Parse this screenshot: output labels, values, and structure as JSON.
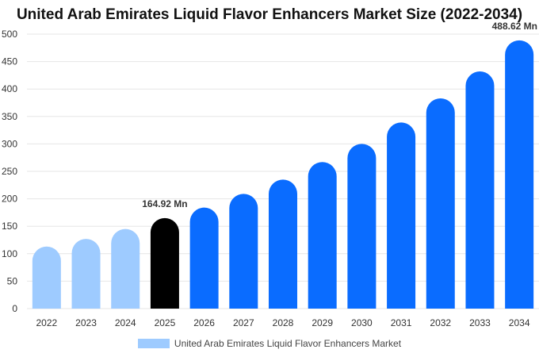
{
  "chart_data": {
    "type": "bar",
    "title": "United Arab Emirates Liquid Flavor Enhancers Market Size (2022-2034)",
    "categories": [
      "2022",
      "2023",
      "2024",
      "2025",
      "2026",
      "2027",
      "2028",
      "2029",
      "2030",
      "2031",
      "2032",
      "2033",
      "2034"
    ],
    "series": [
      {
        "name": "United Arab Emirates Liquid Flavor Enhancers Market",
        "values": [
          113,
          127,
          145,
          164.92,
          184,
          209,
          235,
          267,
          300,
          339,
          383,
          432,
          488.62
        ]
      }
    ],
    "ylim": [
      0,
      500
    ],
    "yticks": [
      0,
      50,
      100,
      150,
      200,
      250,
      300,
      350,
      400,
      450,
      500
    ],
    "data_labels": [
      {
        "index": 3,
        "text": "164.92 Mn"
      },
      {
        "index": 12,
        "text": "488.62 Mn"
      }
    ],
    "bar_colors": {
      "historical": "#9ecbff",
      "base_year": "#000000",
      "forecast": "#0a6cff"
    },
    "color_segments": [
      "historical",
      "historical",
      "historical",
      "base_year",
      "forecast",
      "forecast",
      "forecast",
      "forecast",
      "forecast",
      "forecast",
      "forecast",
      "forecast",
      "forecast"
    ],
    "grid": true,
    "legend": "bottom-center"
  }
}
